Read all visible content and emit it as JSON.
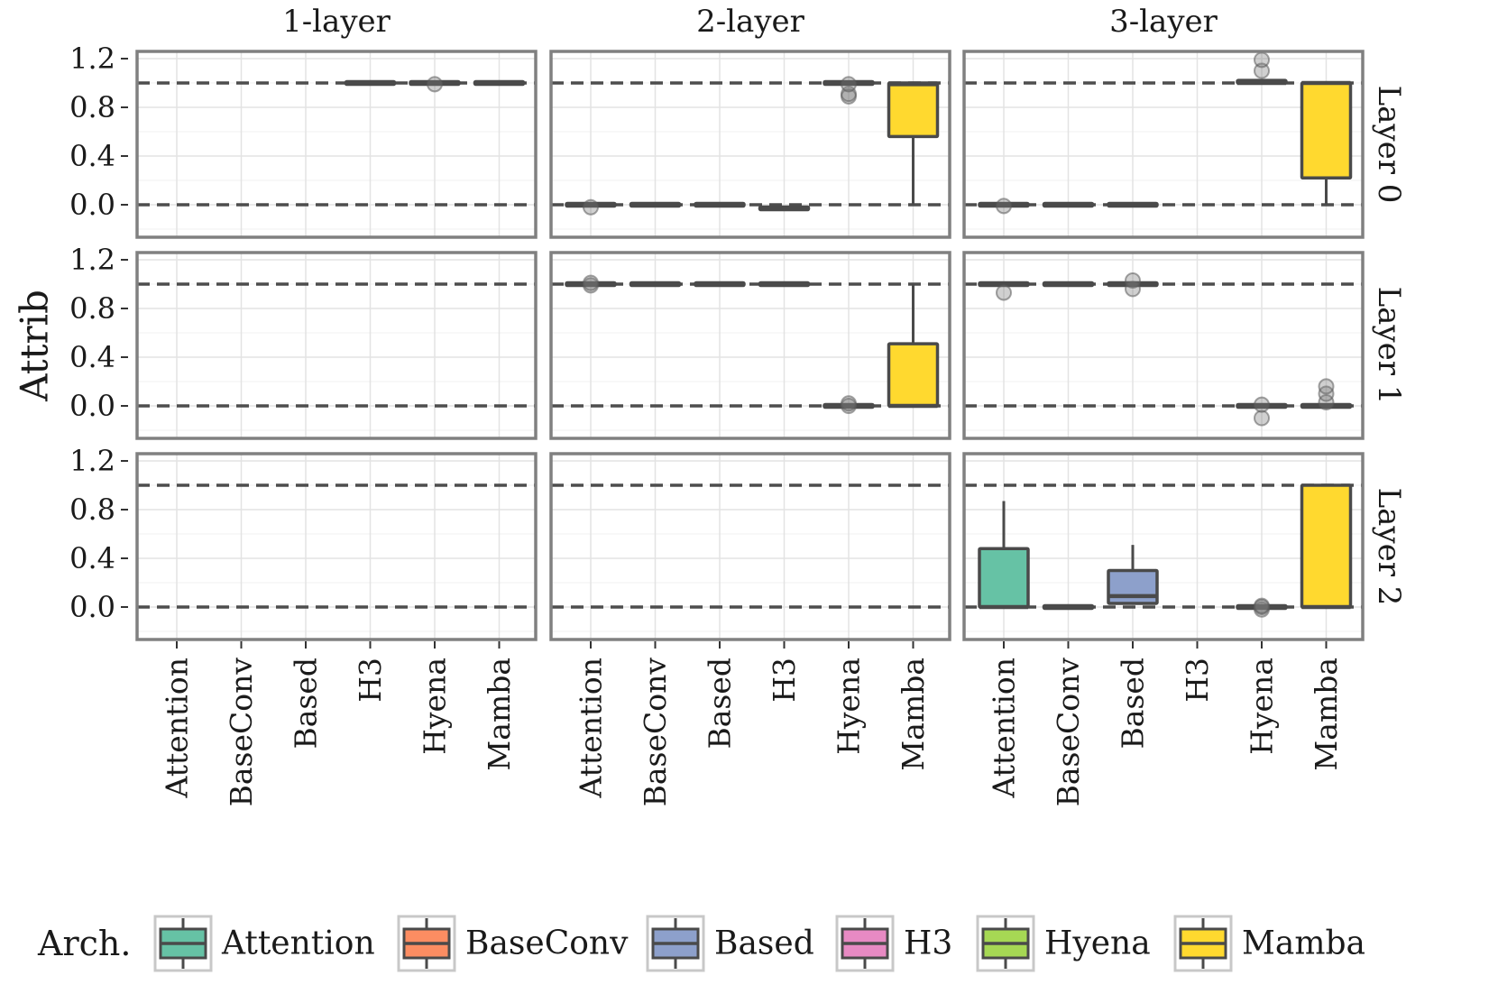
{
  "chart_data": {
    "type": "box",
    "ylabel": "Attrib",
    "ylim": [
      -0.3,
      1.28
    ],
    "y_ticks": [
      "1.2",
      "0.8",
      "0.4",
      "0.0"
    ],
    "y_tick_values": [
      1.2,
      0.8,
      0.4,
      0.0
    ],
    "reference_lines": [
      0,
      1
    ],
    "grid": true,
    "columns": [
      "1-layer",
      "2-layer",
      "3-layer"
    ],
    "rows": [
      "Layer 0",
      "Layer 1",
      "Layer 2"
    ],
    "categories": [
      "Attention",
      "BaseConv",
      "Based",
      "H3",
      "Hyena",
      "Mamba"
    ],
    "legend": {
      "title": "Arch.",
      "position": "bottom",
      "items": [
        {
          "label": "Attention",
          "color": "#66C2A5"
        },
        {
          "label": "BaseConv",
          "color": "#FC8D62"
        },
        {
          "label": "Based",
          "color": "#8DA0CB"
        },
        {
          "label": "H3",
          "color": "#E78AC3"
        },
        {
          "label": "Hyena",
          "color": "#A6D854"
        },
        {
          "label": "Mamba",
          "color": "#FFD92F"
        }
      ]
    },
    "panels": [
      {
        "column": "1-layer",
        "row": "Layer 0",
        "boxes": [
          {
            "arch": "H3",
            "min": 1.0,
            "q1": 1.0,
            "median": 1.0,
            "q3": 1.0,
            "max": 1.0,
            "outliers": []
          },
          {
            "arch": "Hyena",
            "min": 1.0,
            "q1": 1.0,
            "median": 1.0,
            "q3": 1.0,
            "max": 1.0,
            "outliers": [
              0.99
            ]
          },
          {
            "arch": "Mamba",
            "min": 1.0,
            "q1": 1.0,
            "median": 1.0,
            "q3": 1.0,
            "max": 1.0,
            "outliers": []
          }
        ]
      },
      {
        "column": "2-layer",
        "row": "Layer 0",
        "boxes": [
          {
            "arch": "Attention",
            "min": 0.0,
            "q1": 0.0,
            "median": 0.0,
            "q3": 0.0,
            "max": 0.0,
            "outliers": [
              -0.02
            ]
          },
          {
            "arch": "BaseConv",
            "min": 0.0,
            "q1": 0.0,
            "median": 0.0,
            "q3": 0.0,
            "max": 0.0,
            "outliers": []
          },
          {
            "arch": "Based",
            "min": 0.0,
            "q1": 0.0,
            "median": 0.0,
            "q3": 0.0,
            "max": 0.0,
            "outliers": []
          },
          {
            "arch": "H3",
            "min": -0.03,
            "q1": -0.03,
            "median": -0.03,
            "q3": -0.03,
            "max": -0.03,
            "outliers": []
          },
          {
            "arch": "Hyena",
            "min": 1.0,
            "q1": 1.0,
            "median": 1.0,
            "q3": 1.0,
            "max": 1.0,
            "outliers": [
              0.89,
              0.91,
              0.99
            ]
          },
          {
            "arch": "Mamba",
            "min": 0.0,
            "q1": 0.56,
            "median": 0.99,
            "q3": 1.0,
            "max": 1.0,
            "outliers": []
          }
        ]
      },
      {
        "column": "3-layer",
        "row": "Layer 0",
        "boxes": [
          {
            "arch": "Attention",
            "min": 0.0,
            "q1": 0.0,
            "median": 0.0,
            "q3": 0.0,
            "max": 0.0,
            "outliers": [
              -0.01
            ]
          },
          {
            "arch": "BaseConv",
            "min": 0.0,
            "q1": 0.0,
            "median": 0.0,
            "q3": 0.0,
            "max": 0.0,
            "outliers": []
          },
          {
            "arch": "Based",
            "min": 0.0,
            "q1": 0.0,
            "median": 0.0,
            "q3": 0.0,
            "max": 0.0,
            "outliers": []
          },
          {
            "arch": "Hyena",
            "min": 1.0,
            "q1": 1.0,
            "median": 1.0,
            "q3": 1.01,
            "max": 1.01,
            "outliers": [
              1.1,
              1.19
            ]
          },
          {
            "arch": "Mamba",
            "min": 0.0,
            "q1": 0.22,
            "median": 1.0,
            "q3": 1.0,
            "max": 1.0,
            "outliers": []
          }
        ]
      },
      {
        "column": "1-layer",
        "row": "Layer 1",
        "boxes": []
      },
      {
        "column": "2-layer",
        "row": "Layer 1",
        "boxes": [
          {
            "arch": "Attention",
            "min": 1.0,
            "q1": 1.0,
            "median": 1.0,
            "q3": 1.0,
            "max": 1.0,
            "outliers": [
              0.99,
              1.01
            ]
          },
          {
            "arch": "BaseConv",
            "min": 1.0,
            "q1": 1.0,
            "median": 1.0,
            "q3": 1.0,
            "max": 1.0,
            "outliers": []
          },
          {
            "arch": "Based",
            "min": 1.0,
            "q1": 1.0,
            "median": 1.0,
            "q3": 1.0,
            "max": 1.0,
            "outliers": []
          },
          {
            "arch": "H3",
            "min": 1.0,
            "q1": 1.0,
            "median": 1.0,
            "q3": 1.0,
            "max": 1.0,
            "outliers": []
          },
          {
            "arch": "Hyena",
            "min": 0.0,
            "q1": 0.0,
            "median": 0.0,
            "q3": 0.0,
            "max": 0.0,
            "outliers": [
              0.0,
              0.02
            ]
          },
          {
            "arch": "Mamba",
            "min": 0.0,
            "q1": 0.0,
            "median": 0.0,
            "q3": 0.51,
            "max": 1.0,
            "outliers": []
          }
        ]
      },
      {
        "column": "3-layer",
        "row": "Layer 1",
        "boxes": [
          {
            "arch": "Attention",
            "min": 1.0,
            "q1": 1.0,
            "median": 1.0,
            "q3": 1.0,
            "max": 1.0,
            "outliers": [
              0.93
            ]
          },
          {
            "arch": "BaseConv",
            "min": 1.0,
            "q1": 1.0,
            "median": 1.0,
            "q3": 1.0,
            "max": 1.0,
            "outliers": []
          },
          {
            "arch": "Based",
            "min": 0.99,
            "q1": 0.99,
            "median": 1.0,
            "q3": 1.0,
            "max": 1.0,
            "outliers": [
              0.96,
              1.03
            ]
          },
          {
            "arch": "Hyena",
            "min": 0.0,
            "q1": 0.0,
            "median": 0.0,
            "q3": 0.0,
            "max": 0.0,
            "outliers": [
              -0.1,
              0.01
            ]
          },
          {
            "arch": "Mamba",
            "min": 0.0,
            "q1": 0.0,
            "median": 0.0,
            "q3": 0.0,
            "max": 0.0,
            "outliers": [
              0.03,
              0.1,
              0.16
            ]
          }
        ]
      },
      {
        "column": "1-layer",
        "row": "Layer 2",
        "boxes": []
      },
      {
        "column": "2-layer",
        "row": "Layer 2",
        "boxes": []
      },
      {
        "column": "3-layer",
        "row": "Layer 2",
        "boxes": [
          {
            "arch": "Attention",
            "min": 0.0,
            "q1": 0.0,
            "median": 0.0,
            "q3": 0.48,
            "max": 0.87,
            "outliers": []
          },
          {
            "arch": "BaseConv",
            "min": 0.0,
            "q1": 0.0,
            "median": 0.0,
            "q3": 0.0,
            "max": 0.0,
            "outliers": []
          },
          {
            "arch": "Based",
            "min": 0.03,
            "q1": 0.03,
            "median": 0.09,
            "q3": 0.3,
            "max": 0.51,
            "outliers": []
          },
          {
            "arch": "Hyena",
            "min": 0.0,
            "q1": 0.0,
            "median": 0.0,
            "q3": 0.0,
            "max": 0.0,
            "outliers": [
              -0.02,
              0.0,
              0.01
            ]
          },
          {
            "arch": "Mamba",
            "min": 0.0,
            "q1": 0.0,
            "median": 0.0,
            "q3": 1.0,
            "max": 1.0,
            "outliers": []
          }
        ]
      }
    ]
  }
}
